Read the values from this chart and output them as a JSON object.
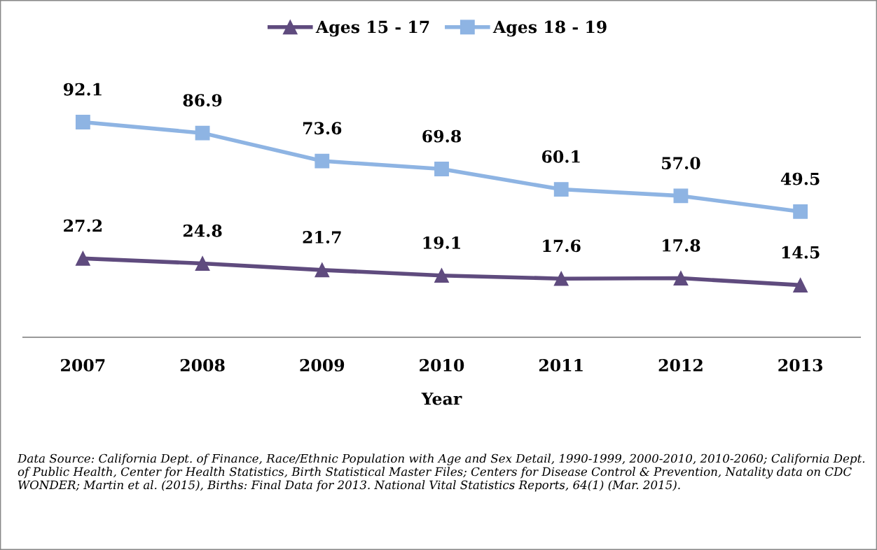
{
  "chart_data": {
    "type": "line",
    "xlabel": "Year",
    "categories": [
      "2007",
      "2008",
      "2009",
      "2010",
      "2011",
      "2012",
      "2013"
    ],
    "series": [
      {
        "name": "Ages 15 - 17",
        "color": "#5f4b7e",
        "marker": "triangle",
        "values": [
          27.2,
          24.8,
          21.7,
          19.1,
          17.6,
          17.8,
          14.5
        ],
        "value_labels": [
          "27.2",
          "24.8",
          "21.7",
          "19.1",
          "17.6",
          "17.8",
          "14.5"
        ]
      },
      {
        "name": "Ages 18 - 19",
        "color": "#8eb4e3",
        "marker": "square",
        "values": [
          92.1,
          86.9,
          73.6,
          69.8,
          60.1,
          57.0,
          49.5
        ],
        "value_labels": [
          "92.1",
          "86.9",
          "73.6",
          "69.8",
          "60.1",
          "57.0",
          "49.5"
        ]
      }
    ],
    "tick_labels": "x",
    "grid": false,
    "legend": "top",
    "annotations": [
      "Data Source: California Dept. of Finance, Race/Ethnic Population with Age and Sex Detail, 1990-1999, 2000-2010, 2010-2060; California Dept. of Public Health, Center for Health Statistics, Birth Statistical Master Files; Centers for Disease Control & Prevention, Natality data on CDC WONDER; Martin et al. (2015), Births: Final Data for 2013. National Vital Statistics Reports, 64(1) (Mar. 2015)."
    ]
  }
}
